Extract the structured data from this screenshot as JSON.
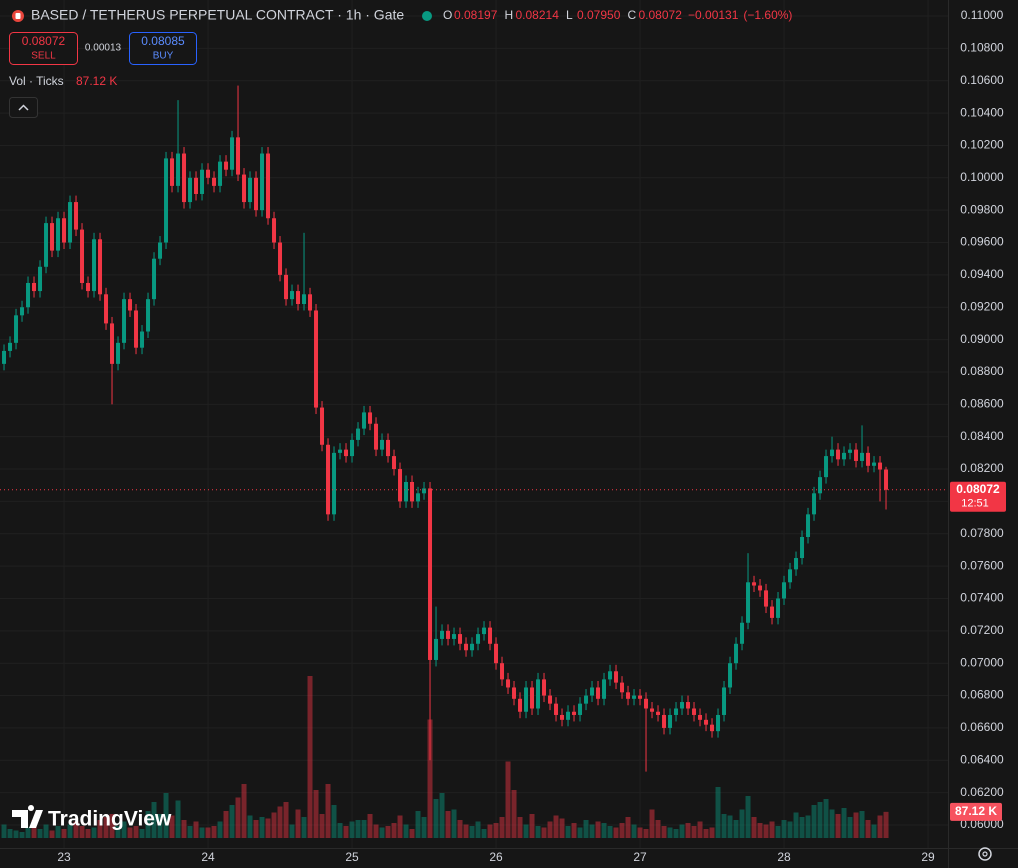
{
  "chart_data": {
    "type": "candlestick",
    "title": "BASED / TETHERUS PERPETUAL CONTRACT · 1h · Gate",
    "up_color": "#089981",
    "down_color": "#f23645",
    "grid": true,
    "legend_ohlc": [
      {
        "key": "O",
        "value": 0.08197,
        "label": "0.08197"
      },
      {
        "key": "H",
        "value": 0.08214,
        "label": "0.08214"
      },
      {
        "key": "L",
        "value": 0.0795,
        "label": "0.07950"
      },
      {
        "key": "C",
        "value": 0.08072,
        "label": "0.08072"
      }
    ],
    "change": {
      "value": -0.00131,
      "label": "−0.00131"
    },
    "change_pct": {
      "value": -1.6,
      "label": "(−1.60%)"
    },
    "sell": {
      "price": {
        "value": 0.08072,
        "label": "0.08072"
      },
      "label": "SELL"
    },
    "spread": {
      "value": 0.00013,
      "label": "0.00013"
    },
    "buy": {
      "price": {
        "value": 0.08085,
        "label": "0.08085"
      },
      "label": "BUY"
    },
    "last_price": {
      "value": 0.08072,
      "label": "0.08072"
    },
    "countdown": "12:51",
    "brand": "TradingView",
    "xlim": [
      -10.67,
      147.33
    ],
    "xticks": [
      {
        "value": 0,
        "label": "23"
      },
      {
        "value": 24,
        "label": "24"
      },
      {
        "value": 48,
        "label": "25"
      },
      {
        "value": 72,
        "label": "26"
      },
      {
        "value": 96,
        "label": "27"
      },
      {
        "value": 120,
        "label": "28"
      },
      {
        "value": 144,
        "label": "29"
      }
    ],
    "ylim": [
      0.06,
      0.11
    ],
    "yticks": [
      {
        "value": 0.06,
        "label": "0.06000"
      },
      {
        "value": 0.062,
        "label": "0.06200"
      },
      {
        "value": 0.064,
        "label": "0.06400"
      },
      {
        "value": 0.066,
        "label": "0.06600"
      },
      {
        "value": 0.068,
        "label": "0.06800"
      },
      {
        "value": 0.07,
        "label": "0.07000"
      },
      {
        "value": 0.072,
        "label": "0.07200"
      },
      {
        "value": 0.074,
        "label": "0.07400"
      },
      {
        "value": 0.076,
        "label": "0.07600"
      },
      {
        "value": 0.078,
        "label": "0.07800"
      },
      {
        "value": 0.08,
        "label": "0.08000"
      },
      {
        "value": 0.082,
        "label": "0.08200"
      },
      {
        "value": 0.084,
        "label": "0.08400"
      },
      {
        "value": 0.086,
        "label": "0.08600"
      },
      {
        "value": 0.088,
        "label": "0.08800"
      },
      {
        "value": 0.09,
        "label": "0.09000"
      },
      {
        "value": 0.092,
        "label": "0.09200"
      },
      {
        "value": 0.094,
        "label": "0.09400"
      },
      {
        "value": 0.096,
        "label": "0.09600"
      },
      {
        "value": 0.098,
        "label": "0.09800"
      },
      {
        "value": 0.1,
        "label": "0.10000"
      },
      {
        "value": 0.102,
        "label": "0.10200"
      },
      {
        "value": 0.104,
        "label": "0.10400"
      },
      {
        "value": 0.106,
        "label": "0.10600"
      },
      {
        "value": 0.108,
        "label": "0.10800"
      },
      {
        "value": 0.11,
        "label": "0.11000"
      }
    ],
    "x": [
      -10,
      -9,
      -8,
      -7,
      -6,
      -5,
      -4,
      -3,
      -2,
      -1,
      0,
      1,
      2,
      3,
      4,
      5,
      6,
      7,
      8,
      9,
      10,
      11,
      12,
      13,
      14,
      15,
      16,
      17,
      18,
      19,
      20,
      21,
      22,
      23,
      24,
      25,
      26,
      27,
      28,
      29,
      30,
      31,
      32,
      33,
      34,
      35,
      36,
      37,
      38,
      39,
      40,
      41,
      42,
      43,
      44,
      45,
      46,
      47,
      48,
      49,
      50,
      51,
      52,
      53,
      54,
      55,
      56,
      57,
      58,
      59,
      60,
      61,
      62,
      63,
      64,
      65,
      66,
      67,
      68,
      69,
      70,
      71,
      72,
      73,
      74,
      75,
      76,
      77,
      78,
      79,
      80,
      81,
      82,
      83,
      84,
      85,
      86,
      87,
      88,
      89,
      90,
      91,
      92,
      93,
      94,
      95,
      96,
      97,
      98,
      99,
      100,
      101,
      102,
      103,
      104,
      105,
      106,
      107,
      108,
      109,
      110,
      111,
      112,
      113,
      114,
      115,
      116,
      117,
      118,
      119,
      120,
      121,
      122,
      123,
      124,
      125,
      126,
      127,
      128,
      129,
      130,
      131,
      132,
      133,
      134,
      135,
      136,
      137
    ],
    "open": [
      0.0885,
      0.0893,
      0.0898,
      0.0915,
      0.092,
      0.0935,
      0.093,
      0.0945,
      0.0972,
      0.0955,
      0.0975,
      0.096,
      0.0985,
      0.0968,
      0.0935,
      0.093,
      0.0962,
      0.0928,
      0.091,
      0.0885,
      0.0898,
      0.0925,
      0.0918,
      0.0895,
      0.0905,
      0.0925,
      0.095,
      0.096,
      0.1012,
      0.0995,
      0.1015,
      0.0985,
      0.1,
      0.099,
      0.1005,
      0.1,
      0.0995,
      0.101,
      0.1005,
      0.1025,
      0.1002,
      0.0985,
      0.1,
      0.098,
      0.1015,
      0.0975,
      0.096,
      0.094,
      0.0925,
      0.093,
      0.0922,
      0.0928,
      0.0918,
      0.0858,
      0.0835,
      0.0792,
      0.083,
      0.0832,
      0.0828,
      0.0838,
      0.0845,
      0.0855,
      0.0848,
      0.0832,
      0.0838,
      0.0828,
      0.082,
      0.08,
      0.0812,
      0.08,
      0.0805,
      0.0808,
      0.0702,
      0.0715,
      0.072,
      0.0715,
      0.0718,
      0.0712,
      0.0708,
      0.0712,
      0.0718,
      0.0722,
      0.0712,
      0.07,
      0.069,
      0.0685,
      0.0678,
      0.067,
      0.0685,
      0.0672,
      0.069,
      0.068,
      0.0675,
      0.0668,
      0.0665,
      0.067,
      0.0668,
      0.0675,
      0.068,
      0.0685,
      0.0678,
      0.069,
      0.0695,
      0.0688,
      0.0682,
      0.0678,
      0.068,
      0.0678,
      0.0672,
      0.067,
      0.0668,
      0.066,
      0.0668,
      0.0672,
      0.0676,
      0.0672,
      0.0668,
      0.0665,
      0.0662,
      0.0658,
      0.0668,
      0.0685,
      0.07,
      0.0712,
      0.0725,
      0.075,
      0.0748,
      0.0745,
      0.0735,
      0.0728,
      0.074,
      0.075,
      0.0758,
      0.0765,
      0.0778,
      0.0792,
      0.0805,
      0.0815,
      0.0828,
      0.0832,
      0.0826,
      0.083,
      0.0832,
      0.0825,
      0.083,
      0.0822,
      0.0824,
      0.08197
    ],
    "high": [
      0.0897,
      0.0902,
      0.0919,
      0.0924,
      0.0939,
      0.0939,
      0.0949,
      0.0976,
      0.0976,
      0.0979,
      0.0979,
      0.0989,
      0.0989,
      0.0972,
      0.0939,
      0.0966,
      0.0966,
      0.0932,
      0.0914,
      0.0902,
      0.0929,
      0.0929,
      0.0922,
      0.0909,
      0.0929,
      0.0954,
      0.0964,
      0.1016,
      0.1016,
      0.1048,
      0.1019,
      0.1004,
      0.1004,
      0.1009,
      0.1009,
      0.1004,
      0.1014,
      0.1014,
      0.1029,
      0.1057,
      0.1006,
      0.1004,
      0.1004,
      0.1019,
      0.1019,
      0.0979,
      0.0964,
      0.0944,
      0.0934,
      0.0934,
      0.0966,
      0.0932,
      0.0922,
      0.0862,
      0.0839,
      0.0834,
      0.0836,
      0.0836,
      0.0842,
      0.0849,
      0.0859,
      0.0859,
      0.0852,
      0.0842,
      0.0842,
      0.0832,
      0.0824,
      0.0816,
      0.0816,
      0.0809,
      0.0812,
      0.0812,
      0.0735,
      0.0724,
      0.0724,
      0.0722,
      0.0722,
      0.0716,
      0.0716,
      0.0722,
      0.0726,
      0.0726,
      0.0716,
      0.0704,
      0.0694,
      0.0689,
      0.0682,
      0.0689,
      0.0689,
      0.0694,
      0.0694,
      0.0684,
      0.0679,
      0.0672,
      0.0674,
      0.0674,
      0.0679,
      0.0684,
      0.0689,
      0.0689,
      0.0694,
      0.0699,
      0.0699,
      0.0692,
      0.0686,
      0.0684,
      0.0684,
      0.0682,
      0.0676,
      0.0674,
      0.0672,
      0.0672,
      0.0676,
      0.068,
      0.068,
      0.0676,
      0.0672,
      0.0669,
      0.0666,
      0.0672,
      0.0689,
      0.0704,
      0.0716,
      0.0729,
      0.0768,
      0.0754,
      0.0752,
      0.0749,
      0.0739,
      0.0744,
      0.0754,
      0.0762,
      0.0769,
      0.0782,
      0.0796,
      0.0809,
      0.0819,
      0.0832,
      0.084,
      0.0836,
      0.0834,
      0.0836,
      0.0836,
      0.0847,
      0.0834,
      0.0828,
      0.0828,
      0.08214
    ],
    "low": [
      0.0881,
      0.0889,
      0.0894,
      0.0911,
      0.0916,
      0.0926,
      0.0926,
      0.0941,
      0.0951,
      0.0951,
      0.0956,
      0.0956,
      0.0964,
      0.0931,
      0.0926,
      0.0926,
      0.0924,
      0.0906,
      0.086,
      0.0881,
      0.0894,
      0.0914,
      0.0891,
      0.0891,
      0.0901,
      0.0921,
      0.0946,
      0.0956,
      0.0991,
      0.0991,
      0.0981,
      0.0981,
      0.0986,
      0.0986,
      0.0996,
      0.0991,
      0.0991,
      0.1001,
      0.1001,
      0.0998,
      0.0981,
      0.0981,
      0.0976,
      0.0976,
      0.0971,
      0.0956,
      0.0936,
      0.0921,
      0.0921,
      0.0918,
      0.0918,
      0.0914,
      0.0854,
      0.0831,
      0.0788,
      0.0788,
      0.0826,
      0.0824,
      0.0824,
      0.0834,
      0.0841,
      0.0844,
      0.0828,
      0.0828,
      0.0824,
      0.0816,
      0.0796,
      0.0796,
      0.0796,
      0.0796,
      0.0801,
      0.064,
      0.0698,
      0.0711,
      0.0711,
      0.0711,
      0.0708,
      0.0704,
      0.0704,
      0.0708,
      0.0714,
      0.0708,
      0.0696,
      0.0686,
      0.0681,
      0.0674,
      0.0666,
      0.0666,
      0.0668,
      0.0668,
      0.0676,
      0.0671,
      0.0664,
      0.0661,
      0.0661,
      0.0664,
      0.0664,
      0.0671,
      0.0676,
      0.0674,
      0.0674,
      0.0686,
      0.0684,
      0.0678,
      0.0674,
      0.0674,
      0.0674,
      0.0633,
      0.0666,
      0.0664,
      0.0656,
      0.0656,
      0.0664,
      0.0668,
      0.0668,
      0.0664,
      0.0661,
      0.0658,
      0.0654,
      0.0654,
      0.0664,
      0.0681,
      0.0696,
      0.0708,
      0.0721,
      0.0744,
      0.0741,
      0.0731,
      0.0724,
      0.0724,
      0.0736,
      0.0746,
      0.0754,
      0.0761,
      0.0774,
      0.0788,
      0.0801,
      0.0811,
      0.0824,
      0.0822,
      0.0822,
      0.0826,
      0.0821,
      0.0821,
      0.0818,
      0.0818,
      0.08,
      0.0795
    ],
    "close": [
      0.0893,
      0.0898,
      0.0915,
      0.092,
      0.0935,
      0.093,
      0.0945,
      0.0972,
      0.0955,
      0.0975,
      0.096,
      0.0985,
      0.0968,
      0.0935,
      0.093,
      0.0962,
      0.0928,
      0.091,
      0.0885,
      0.0898,
      0.0925,
      0.0918,
      0.0895,
      0.0905,
      0.0925,
      0.095,
      0.096,
      0.1012,
      0.0995,
      0.1015,
      0.0985,
      0.1,
      0.099,
      0.1005,
      0.1,
      0.0995,
      0.101,
      0.1005,
      0.1025,
      0.1002,
      0.0985,
      0.1,
      0.098,
      0.1015,
      0.0975,
      0.096,
      0.094,
      0.0925,
      0.093,
      0.0922,
      0.0928,
      0.0918,
      0.0858,
      0.0835,
      0.0792,
      0.083,
      0.0832,
      0.0828,
      0.0838,
      0.0845,
      0.0855,
      0.0848,
      0.0832,
      0.0838,
      0.0828,
      0.082,
      0.08,
      0.0812,
      0.08,
      0.0805,
      0.0808,
      0.0702,
      0.0715,
      0.072,
      0.0715,
      0.0718,
      0.0712,
      0.0708,
      0.0712,
      0.0718,
      0.0722,
      0.0712,
      0.07,
      0.069,
      0.0685,
      0.0678,
      0.067,
      0.0685,
      0.0672,
      0.069,
      0.068,
      0.0675,
      0.0668,
      0.0665,
      0.067,
      0.0668,
      0.0675,
      0.068,
      0.0685,
      0.0678,
      0.069,
      0.0695,
      0.0688,
      0.0682,
      0.0678,
      0.068,
      0.0678,
      0.0672,
      0.067,
      0.0668,
      0.066,
      0.0668,
      0.0672,
      0.0676,
      0.0672,
      0.0668,
      0.0665,
      0.0662,
      0.0658,
      0.0668,
      0.0685,
      0.07,
      0.0712,
      0.0725,
      0.075,
      0.0748,
      0.0745,
      0.0735,
      0.0728,
      0.074,
      0.075,
      0.0758,
      0.0765,
      0.0778,
      0.0792,
      0.0805,
      0.0815,
      0.0828,
      0.0832,
      0.0826,
      0.083,
      0.0832,
      0.0825,
      0.083,
      0.0822,
      0.0824,
      0.08197,
      0.08072
    ],
    "volume": {
      "name": "Vol · Ticks",
      "label": "87.12 K",
      "values": [
        45,
        30,
        25,
        20,
        35,
        60,
        30,
        45,
        25,
        40,
        30,
        45,
        55,
        40,
        30,
        35,
        60,
        70,
        80,
        40,
        55,
        35,
        40,
        30,
        90,
        120,
        80,
        150,
        75,
        125,
        60,
        40,
        55,
        35,
        35,
        40,
        55,
        90,
        110,
        135,
        180,
        75,
        60,
        70,
        65,
        85,
        105,
        120,
        45,
        95,
        70,
        540,
        160,
        80,
        180,
        110,
        50,
        40,
        55,
        60,
        60,
        80,
        45,
        35,
        40,
        50,
        75,
        45,
        30,
        90,
        70,
        395,
        130,
        150,
        90,
        95,
        60,
        45,
        40,
        55,
        30,
        45,
        50,
        70,
        255,
        160,
        70,
        45,
        80,
        40,
        35,
        55,
        75,
        65,
        40,
        50,
        35,
        60,
        45,
        55,
        50,
        40,
        35,
        50,
        70,
        45,
        35,
        30,
        95,
        60,
        40,
        35,
        30,
        45,
        50,
        40,
        55,
        30,
        35,
        170,
        80,
        75,
        60,
        95,
        140,
        70,
        50,
        45,
        55,
        40,
        60,
        55,
        85,
        70,
        75,
        110,
        120,
        130,
        95,
        80,
        100,
        70,
        85,
        90,
        60,
        45,
        75,
        87.12
      ]
    }
  }
}
